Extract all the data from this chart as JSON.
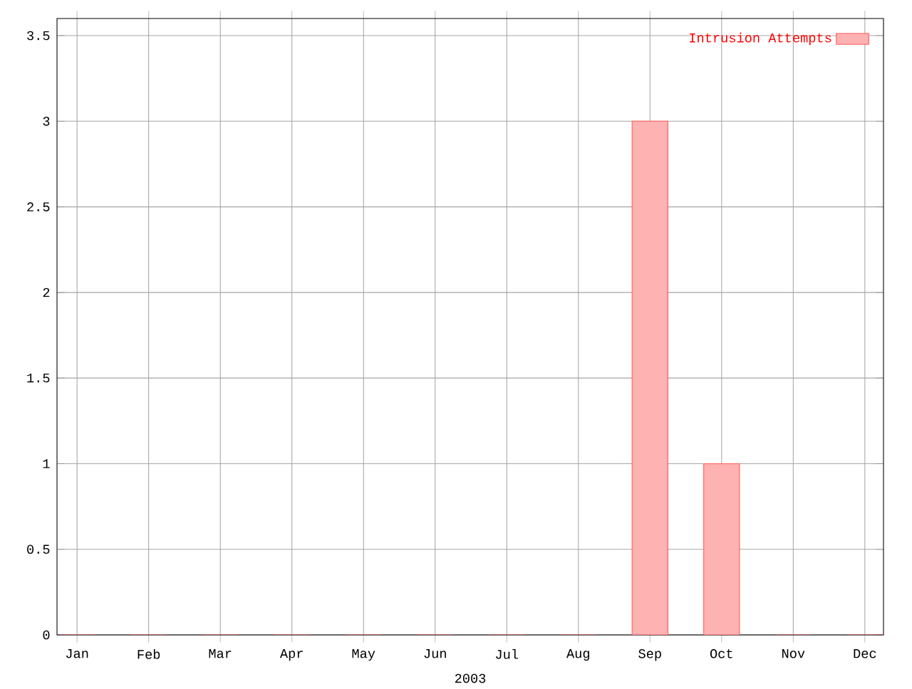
{
  "chart_data": {
    "type": "bar",
    "xlabel": "2003",
    "categories": [
      "Jan",
      "Feb",
      "Mar",
      "Apr",
      "May",
      "Jun",
      "Jul",
      "Aug",
      "Sep",
      "Oct",
      "Nov",
      "Dec"
    ],
    "series": [
      {
        "name": "Intrusion Attempts",
        "color": "#ffb2b2",
        "values": [
          0,
          0,
          0,
          0,
          0,
          0,
          0,
          0,
          3,
          1,
          0,
          0
        ]
      }
    ],
    "ylim": [
      0,
      3.6
    ],
    "yticks": [
      0,
      0.5,
      1,
      1.5,
      2,
      2.5,
      3,
      3.5
    ],
    "grid": true,
    "legend": "top right"
  }
}
